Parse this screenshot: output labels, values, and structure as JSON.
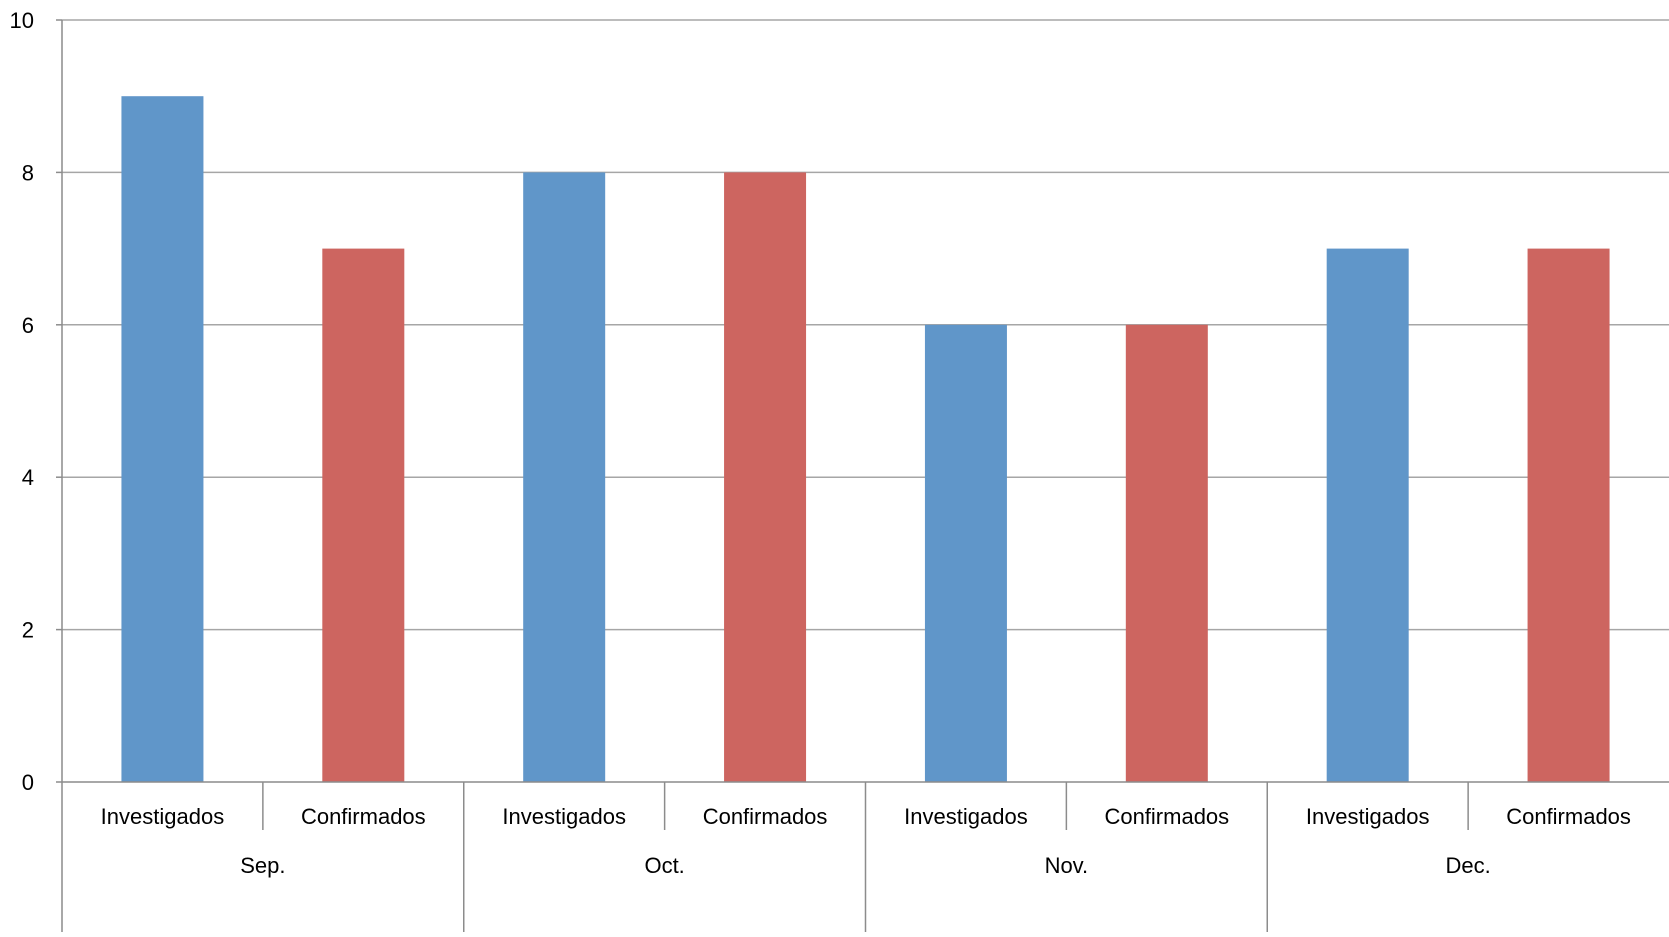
{
  "chart_data": {
    "type": "bar",
    "title": "",
    "xlabel": "",
    "ylabel": "",
    "ylim": [
      0,
      10
    ],
    "yticks": [
      0,
      2,
      4,
      6,
      8,
      10
    ],
    "grid": true,
    "legend": "none",
    "groups": [
      {
        "label": "Sep.",
        "bars": [
          {
            "label": "Investigados",
            "value": 9,
            "color": "#6096c9"
          },
          {
            "label": "Confirmados",
            "value": 7,
            "color": "#cd6560"
          }
        ]
      },
      {
        "label": "Oct.",
        "bars": [
          {
            "label": "Investigados",
            "value": 8,
            "color": "#6096c9"
          },
          {
            "label": "Confirmados",
            "value": 8,
            "color": "#cd6560"
          }
        ]
      },
      {
        "label": "Nov.",
        "bars": [
          {
            "label": "Investigados",
            "value": 6,
            "color": "#6096c9"
          },
          {
            "label": "Confirmados",
            "value": 6,
            "color": "#cd6560"
          }
        ]
      },
      {
        "label": "Dec.",
        "bars": [
          {
            "label": "Investigados",
            "value": 7,
            "color": "#6096c9"
          },
          {
            "label": "Confirmados",
            "value": 7,
            "color": "#cd6560"
          }
        ]
      }
    ]
  }
}
